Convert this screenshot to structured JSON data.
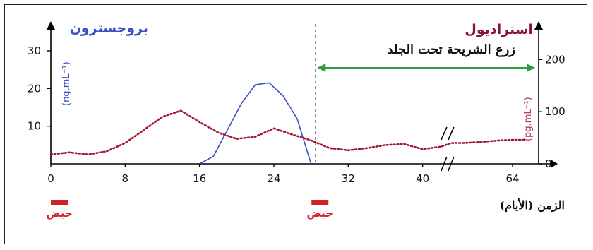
{
  "chart_data": {
    "type": "line",
    "x_axis": {
      "label": "الزمن (الأيام)",
      "ticks": [
        "0",
        "8",
        "16",
        "24",
        "32",
        "40",
        "64"
      ],
      "tick_values": [
        0,
        8,
        16,
        24,
        32,
        40,
        64
      ],
      "axis_break_after": 40,
      "axis_break_before": 64
    },
    "y_left": {
      "title": "بروجسترون",
      "unit": "(ng.mL⁻¹)",
      "ticks": [
        "10",
        "20",
        "30"
      ],
      "tick_values": [
        10,
        20,
        30
      ],
      "range": [
        0,
        36
      ],
      "color": "#3b4fc4"
    },
    "y_right": {
      "title": "استراديول",
      "unit": "(pg.mL⁻¹)",
      "ticks": [
        "0",
        "100",
        "200"
      ],
      "tick_values": [
        0,
        100,
        200
      ],
      "range": [
        0,
        260
      ],
      "color": "#8b1538"
    },
    "series": [
      {
        "name": "بروجسترون",
        "axis": "left",
        "style": "solid",
        "color": "#3b4fc4",
        "x": [
          16,
          17.5,
          19,
          20.5,
          22,
          23.5,
          25,
          26.5,
          28
        ],
        "y": [
          0,
          2,
          9,
          16,
          21,
          21.5,
          18,
          12,
          0
        ]
      },
      {
        "name": "استراديول",
        "axis": "right",
        "style": "dotted",
        "color": "#a01830",
        "x": [
          0,
          2,
          4,
          6,
          8,
          10,
          12,
          14,
          16,
          18,
          20,
          22,
          24,
          26,
          28,
          30,
          32,
          34,
          36,
          38,
          40,
          42,
          44,
          48,
          54,
          60,
          64,
          68
        ],
        "y": [
          18,
          22,
          18,
          24,
          40,
          65,
          90,
          102,
          80,
          60,
          48,
          52,
          68,
          56,
          45,
          30,
          26,
          30,
          36,
          38,
          28,
          33,
          40,
          40,
          42,
          45,
          46,
          46
        ]
      }
    ],
    "annotations": {
      "implant_label": "زرع الشريحة تحت الجلد",
      "implant_start_day": 28.5,
      "menstruation_label": "حيض",
      "menstruation_days": [
        0,
        28.5
      ]
    }
  }
}
